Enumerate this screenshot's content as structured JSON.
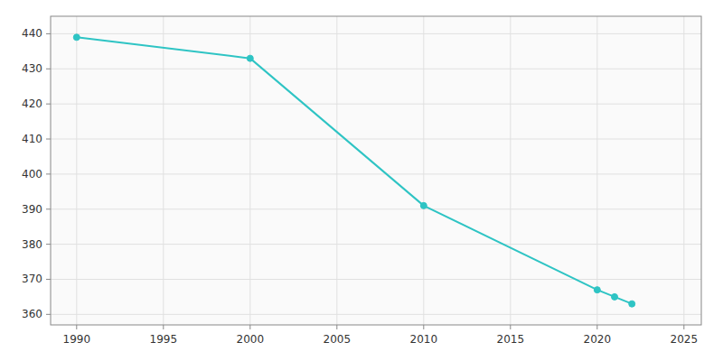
{
  "chart_data": {
    "type": "line",
    "x": [
      1990,
      2000,
      2010,
      2020,
      2021,
      2022
    ],
    "values": [
      439,
      433,
      391,
      367,
      365,
      363
    ],
    "color": "#2EC4C4",
    "marker": "circle",
    "xlim": [
      1988.5,
      2026
    ],
    "ylim": [
      357,
      445
    ],
    "xticks": [
      1990,
      1995,
      2000,
      2005,
      2010,
      2015,
      2020,
      2025
    ],
    "yticks": [
      360,
      370,
      380,
      390,
      400,
      410,
      420,
      430,
      440
    ],
    "grid": true
  }
}
